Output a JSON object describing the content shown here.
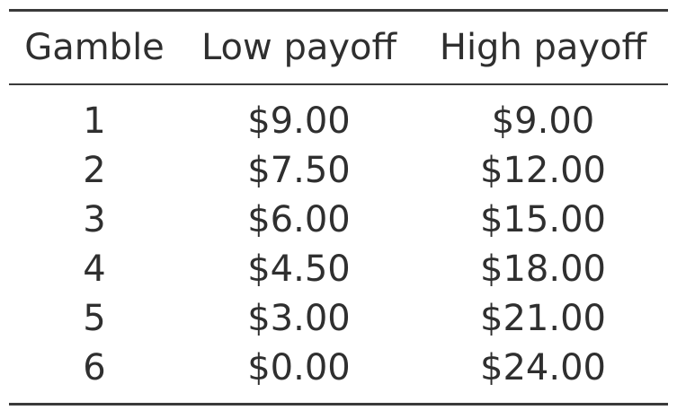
{
  "table": {
    "headers": [
      "Gamble",
      "Low payoff",
      "High payoff"
    ],
    "rows": [
      [
        "1",
        "$9.00",
        "$9.00"
      ],
      [
        "2",
        "$7.50",
        "$12.00"
      ],
      [
        "3",
        "$6.00",
        "$15.00"
      ],
      [
        "4",
        "$4.50",
        "$18.00"
      ],
      [
        "5",
        "$3.00",
        "$21.00"
      ],
      [
        "6",
        "$0.00",
        "$24.00"
      ]
    ]
  },
  "chart_data": {
    "type": "table",
    "columns": [
      "Gamble",
      "Low payoff",
      "High payoff"
    ],
    "rows": [
      {
        "Gamble": 1,
        "Low payoff": 9.0,
        "High payoff": 9.0
      },
      {
        "Gamble": 2,
        "Low payoff": 7.5,
        "High payoff": 12.0
      },
      {
        "Gamble": 3,
        "Low payoff": 6.0,
        "High payoff": 15.0
      },
      {
        "Gamble": 4,
        "Low payoff": 4.5,
        "High payoff": 18.0
      },
      {
        "Gamble": 5,
        "Low payoff": 3.0,
        "High payoff": 21.0
      },
      {
        "Gamble": 6,
        "Low payoff": 0.0,
        "High payoff": 24.0
      }
    ]
  }
}
